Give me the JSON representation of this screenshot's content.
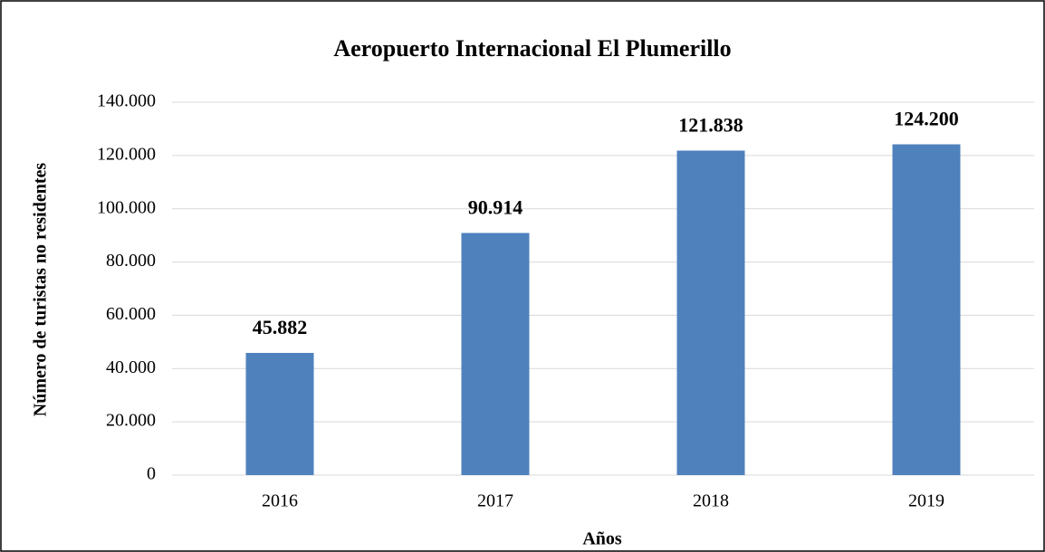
{
  "chart_data": {
    "type": "bar",
    "title": "Aeropuerto Internacional El Plumerillo",
    "x_label": "Años",
    "y_label": "Número de turistas no residentes",
    "categories": [
      "2016",
      "2017",
      "2018",
      "2019"
    ],
    "values": [
      45882,
      90914,
      121838,
      124200
    ],
    "value_labels": [
      "45.882",
      "90.914",
      "121.838",
      "124.200"
    ],
    "color": "#4f81bd",
    "ylim": [
      0,
      140000
    ],
    "yticks": [
      0,
      {
        "value": 20000,
        "label": "20.000"
      },
      {
        "value": 40000,
        "label": "40.000"
      },
      {
        "value": 60000,
        "label": "60.000"
      },
      {
        "value": 80000,
        "label": "80.000"
      },
      {
        "value": 100000,
        "label": "100.000"
      },
      {
        "value": 120000,
        "label": "120.000"
      },
      {
        "value": 140000,
        "label": "140.000"
      }
    ],
    "grid": true
  }
}
